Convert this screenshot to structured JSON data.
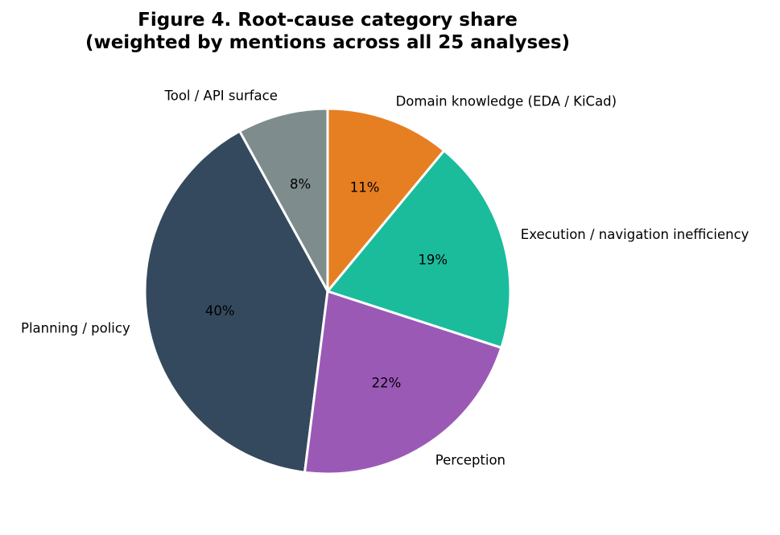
{
  "chart_data": {
    "type": "pie",
    "title": "Figure 4. Root-cause category share\n(weighted by mentions across all 25 analyses)",
    "start_angle_deg": 90,
    "direction": "counterclockwise",
    "legend": "none",
    "slices": [
      {
        "label": "Tool / API surface",
        "value": 8,
        "pct_label": "8%",
        "color": "#7f8c8d"
      },
      {
        "label": "Planning / policy",
        "value": 40,
        "pct_label": "40%",
        "color": "#34495e"
      },
      {
        "label": "Perception",
        "value": 22,
        "pct_label": "22%",
        "color": "#9b59b6"
      },
      {
        "label": "Execution / navigation inefficiency",
        "value": 19,
        "pct_label": "19%",
        "color": "#1abc9c"
      },
      {
        "label": "Domain knowledge (EDA / KiCad)",
        "value": 11,
        "pct_label": "11%",
        "color": "#e67e22"
      }
    ]
  }
}
